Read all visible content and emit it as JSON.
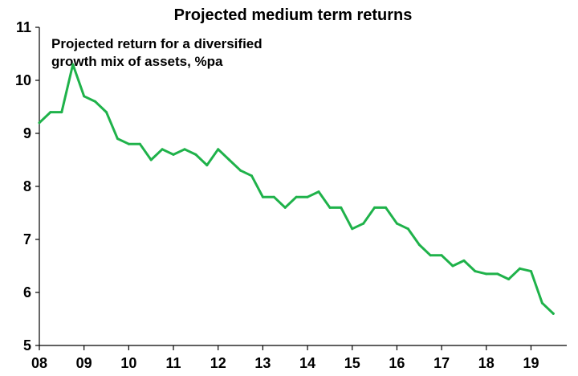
{
  "chart_data": {
    "type": "line",
    "title": "Projected medium term returns",
    "annotation_lines": [
      "Projected return for a diversified",
      "growth mix of assets, %pa"
    ],
    "xlabel": "",
    "ylabel": "",
    "xlim": [
      2008,
      2019.8
    ],
    "ylim": [
      5,
      11
    ],
    "y_ticks": [
      "5",
      "6",
      "7",
      "8",
      "9",
      "10",
      "11"
    ],
    "x_ticks": [
      {
        "value": 2008,
        "label": "08"
      },
      {
        "value": 2009,
        "label": "09"
      },
      {
        "value": 2010,
        "label": "10"
      },
      {
        "value": 2011,
        "label": "11"
      },
      {
        "value": 2012,
        "label": "12"
      },
      {
        "value": 2013,
        "label": "13"
      },
      {
        "value": 2014,
        "label": "14"
      },
      {
        "value": 2015,
        "label": "15"
      },
      {
        "value": 2016,
        "label": "16"
      },
      {
        "value": 2017,
        "label": "17"
      },
      {
        "value": 2018,
        "label": "18"
      },
      {
        "value": 2019,
        "label": "19"
      }
    ],
    "grid": false,
    "legend": "none",
    "series": [
      {
        "color": "#1fb24a",
        "x": [
          2008.0,
          2008.25,
          2008.5,
          2008.75,
          2009.0,
          2009.25,
          2009.5,
          2009.75,
          2010.0,
          2010.25,
          2010.5,
          2010.75,
          2011.0,
          2011.25,
          2011.5,
          2011.75,
          2012.0,
          2012.25,
          2012.5,
          2012.75,
          2013.0,
          2013.25,
          2013.5,
          2013.75,
          2014.0,
          2014.25,
          2014.5,
          2014.75,
          2015.0,
          2015.25,
          2015.5,
          2015.75,
          2016.0,
          2016.25,
          2016.5,
          2016.75,
          2017.0,
          2017.25,
          2017.5,
          2017.75,
          2018.0,
          2018.25,
          2018.5,
          2018.75,
          2019.0,
          2019.25,
          2019.5
        ],
        "y": [
          9.2,
          9.4,
          9.4,
          10.3,
          9.7,
          9.6,
          9.4,
          8.9,
          8.8,
          8.8,
          8.5,
          8.7,
          8.6,
          8.7,
          8.6,
          8.4,
          8.7,
          8.5,
          8.3,
          8.2,
          7.8,
          7.8,
          7.6,
          7.8,
          7.8,
          7.9,
          7.6,
          7.6,
          7.2,
          7.3,
          7.6,
          7.6,
          7.3,
          7.2,
          6.9,
          6.7,
          6.7,
          6.5,
          6.6,
          6.4,
          6.35,
          6.35,
          6.25,
          6.45,
          6.4,
          5.8,
          5.6
        ]
      }
    ]
  }
}
